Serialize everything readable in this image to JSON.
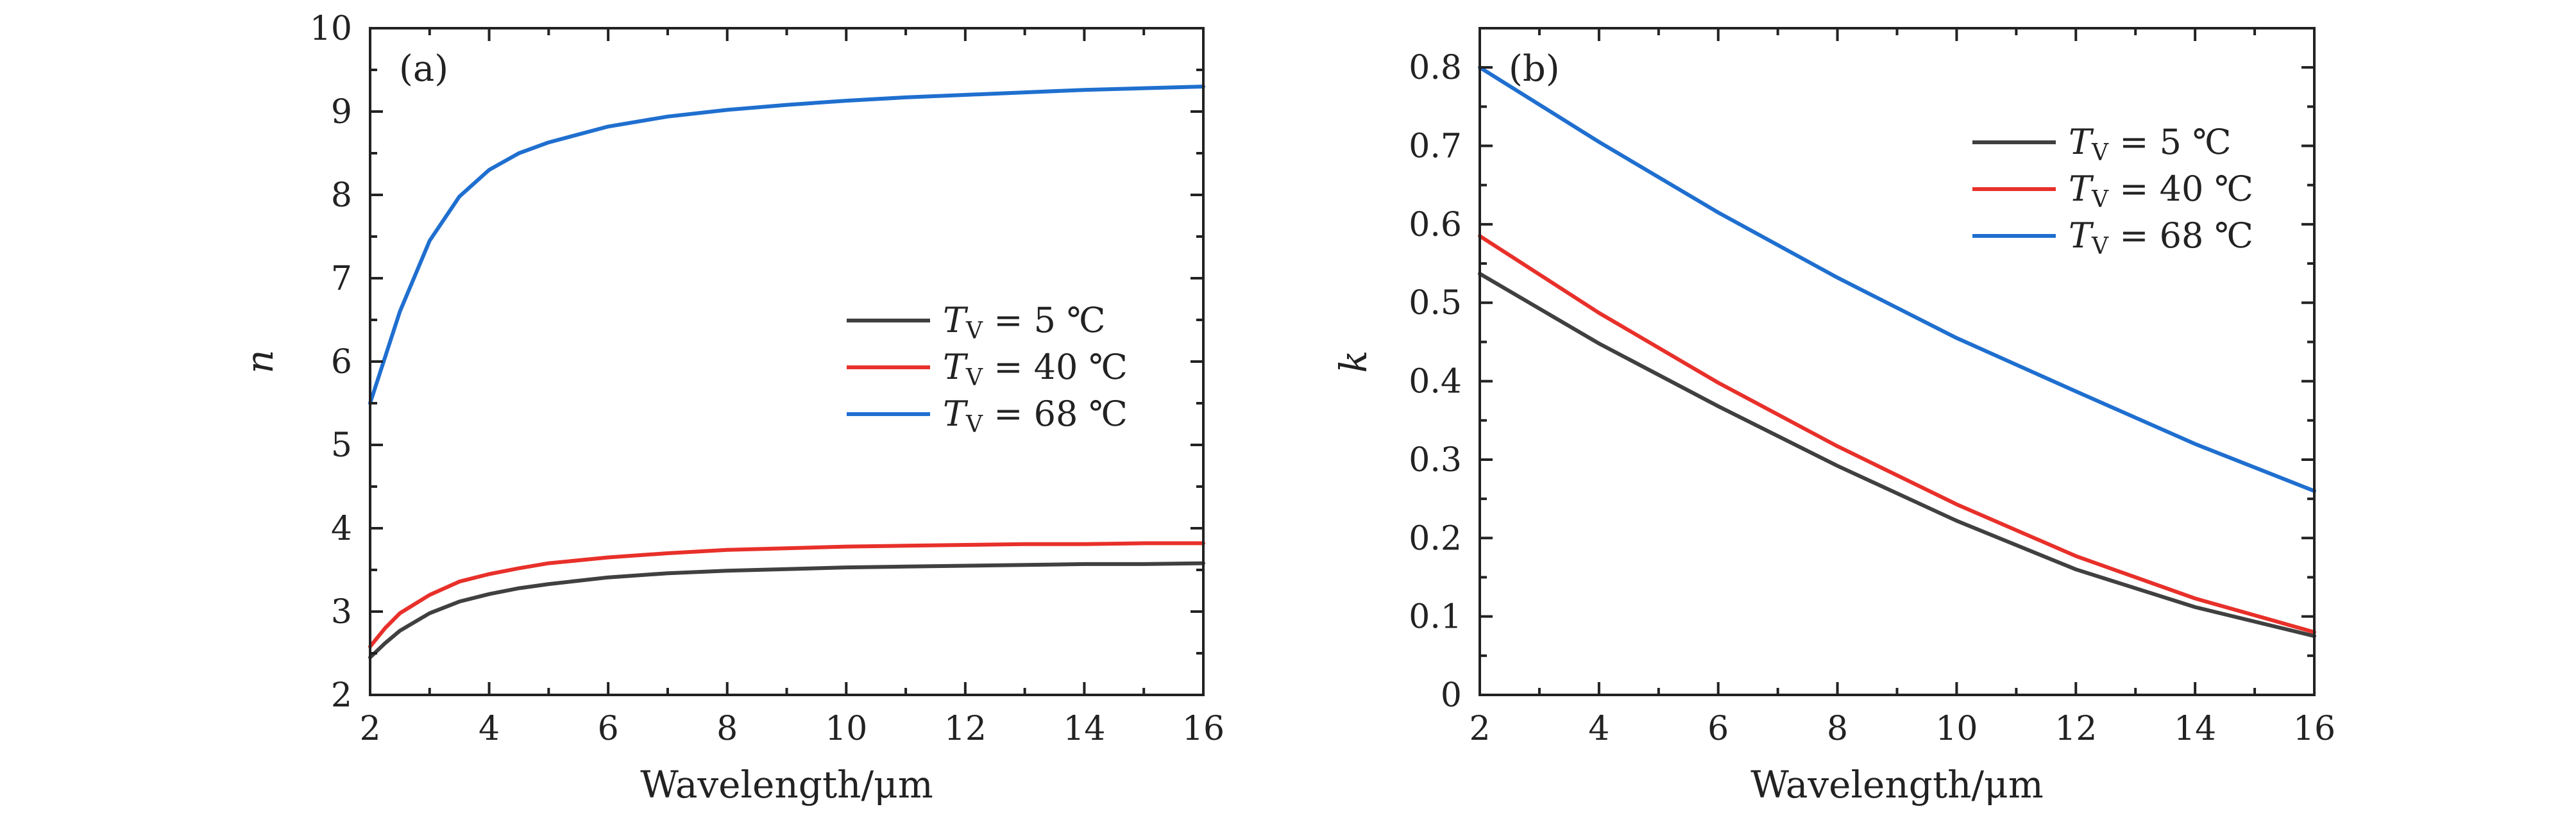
{
  "chart_data": [
    {
      "type": "line",
      "panel_label": "(a)",
      "xlabel": "Wavelength/μm",
      "ylabel": "n",
      "xlim": [
        2,
        16
      ],
      "ylim": [
        2,
        10
      ],
      "xticks": [
        2,
        4,
        6,
        8,
        10,
        12,
        14,
        16
      ],
      "yticks": [
        2,
        3,
        4,
        5,
        6,
        7,
        8,
        9,
        10
      ],
      "legend_position": "center-right",
      "x": [
        2,
        2.25,
        2.5,
        3,
        3.5,
        4,
        4.5,
        5,
        6,
        7,
        8,
        9,
        10,
        11,
        12,
        13,
        14,
        15,
        16
      ],
      "series": [
        {
          "name": "TV = 5 ℃",
          "legend_main": "T",
          "legend_sub": "V",
          "legend_rest": " = 5 ℃",
          "color": "#404040",
          "values": [
            2.45,
            2.62,
            2.77,
            2.98,
            3.12,
            3.21,
            3.28,
            3.33,
            3.41,
            3.46,
            3.49,
            3.51,
            3.53,
            3.54,
            3.55,
            3.56,
            3.57,
            3.57,
            3.58
          ]
        },
        {
          "name": "TV = 40 ℃",
          "legend_main": "T",
          "legend_sub": "V",
          "legend_rest": " = 40 ℃",
          "color": "#e8302a",
          "values": [
            2.58,
            2.8,
            2.98,
            3.2,
            3.36,
            3.45,
            3.52,
            3.58,
            3.65,
            3.7,
            3.74,
            3.76,
            3.78,
            3.79,
            3.8,
            3.81,
            3.81,
            3.82,
            3.82
          ]
        },
        {
          "name": "TV = 68 ℃",
          "legend_main": "T",
          "legend_sub": "V",
          "legend_rest": " = 68 ℃",
          "color": "#1f6fcf",
          "values": [
            5.5,
            6.05,
            6.6,
            7.45,
            7.98,
            8.3,
            8.5,
            8.63,
            8.82,
            8.94,
            9.02,
            9.08,
            9.13,
            9.17,
            9.2,
            9.23,
            9.26,
            9.28,
            9.3
          ]
        }
      ]
    },
    {
      "type": "line",
      "panel_label": "(b)",
      "xlabel": "Wavelength/μm",
      "ylabel": "k",
      "xlim": [
        2,
        16
      ],
      "ylim": [
        0,
        0.85
      ],
      "xticks": [
        2,
        4,
        6,
        8,
        10,
        12,
        14,
        16
      ],
      "yticks": [
        0,
        0.1,
        0.2,
        0.3,
        0.4,
        0.5,
        0.6,
        0.7,
        0.8
      ],
      "ytick_labels": [
        "0",
        "0.1",
        "0.2",
        "0.3",
        "0.4",
        "0.5",
        "0.6",
        "0.7",
        "0.8"
      ],
      "legend_position": "top-right",
      "x": [
        2,
        4,
        6,
        8,
        10,
        12,
        14,
        16
      ],
      "series": [
        {
          "name": "TV = 5 ℃",
          "legend_main": "T",
          "legend_sub": "V",
          "legend_rest": " = 5 ℃",
          "color": "#404040",
          "values": [
            0.537,
            0.448,
            0.368,
            0.292,
            0.222,
            0.16,
            0.112,
            0.075
          ]
        },
        {
          "name": "TV = 40 ℃",
          "legend_main": "T",
          "legend_sub": "V",
          "legend_rest": " = 40 ℃",
          "color": "#e8302a",
          "values": [
            0.585,
            0.487,
            0.398,
            0.317,
            0.243,
            0.177,
            0.123,
            0.08
          ]
        },
        {
          "name": "TV = 68 ℃",
          "legend_main": "T",
          "legend_sub": "V",
          "legend_rest": " = 68 ℃",
          "color": "#1f6fcf",
          "values": [
            0.8,
            0.705,
            0.615,
            0.532,
            0.455,
            0.387,
            0.32,
            0.26
          ]
        }
      ]
    }
  ]
}
